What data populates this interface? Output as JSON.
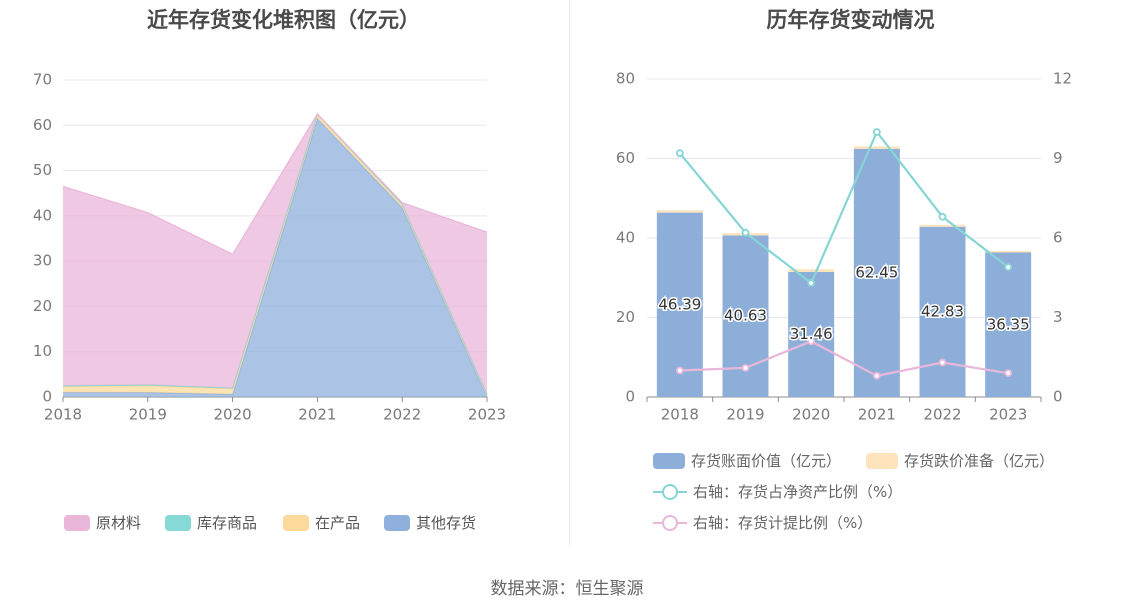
{
  "source_label": "数据来源：恒生聚源",
  "chart_data": [
    {
      "type": "area",
      "title": "近年存货变化堆积图（亿元）",
      "categories": [
        "2018",
        "2019",
        "2020",
        "2021",
        "2022",
        "2023"
      ],
      "ylim": [
        0,
        70
      ],
      "yticks": [
        0,
        10,
        20,
        30,
        40,
        50,
        60,
        70
      ],
      "legend_position": "bottom",
      "stacked": true,
      "series": [
        {
          "name": "其他存货",
          "color": "#8fb0dc",
          "values": [
            1.0,
            1.0,
            0.6,
            61.5,
            41.8,
            0.0
          ]
        },
        {
          "name": "在产品",
          "color": "#fdd99a",
          "values": [
            1.3,
            1.5,
            1.2,
            0.8,
            0.6,
            0.4
          ]
        },
        {
          "name": "库存商品",
          "color": "#86d9d6",
          "values": [
            0.2,
            0.2,
            0.2,
            0.2,
            0.2,
            0.2
          ]
        },
        {
          "name": "原材料",
          "color": "#eab6d9",
          "values": [
            44.0,
            38.0,
            29.5,
            0.0,
            0.3,
            35.8
          ]
        }
      ],
      "legend_order": [
        "原材料",
        "库存商品",
        "在产品",
        "其他存货"
      ]
    },
    {
      "type": "bar",
      "title": "历年存货变动情况",
      "categories": [
        "2018",
        "2019",
        "2020",
        "2021",
        "2022",
        "2023"
      ],
      "ylim": [
        0,
        80
      ],
      "yticks": [
        0,
        20,
        40,
        60,
        80
      ],
      "y2lim": [
        0,
        12
      ],
      "y2ticks": [
        0,
        3,
        6,
        9,
        12
      ],
      "legend_position": "bottom",
      "bar_series": [
        {
          "name": "存货账面价值（亿元）",
          "color": "#8eaeda",
          "values": [
            46.39,
            40.63,
            31.46,
            62.45,
            42.83,
            36.35
          ],
          "labels": [
            "46.39",
            "40.63",
            "31.46",
            "62.45",
            "42.83",
            "36.35"
          ]
        },
        {
          "name": "存货跌价准备（亿元）",
          "color": "#fde4bd",
          "values": [
            0.6,
            0.6,
            0.7,
            0.6,
            0.5,
            0.4
          ]
        }
      ],
      "line_series": [
        {
          "name": "右轴：存货占净资产比例（%）",
          "color": "#86d5d6",
          "values": [
            9.2,
            6.2,
            4.3,
            10.0,
            6.8,
            4.9
          ]
        },
        {
          "name": "右轴：存货计提比例（%）",
          "color": "#e8b7d9",
          "values": [
            1.0,
            1.1,
            2.1,
            0.8,
            1.3,
            0.9
          ]
        }
      ]
    }
  ]
}
